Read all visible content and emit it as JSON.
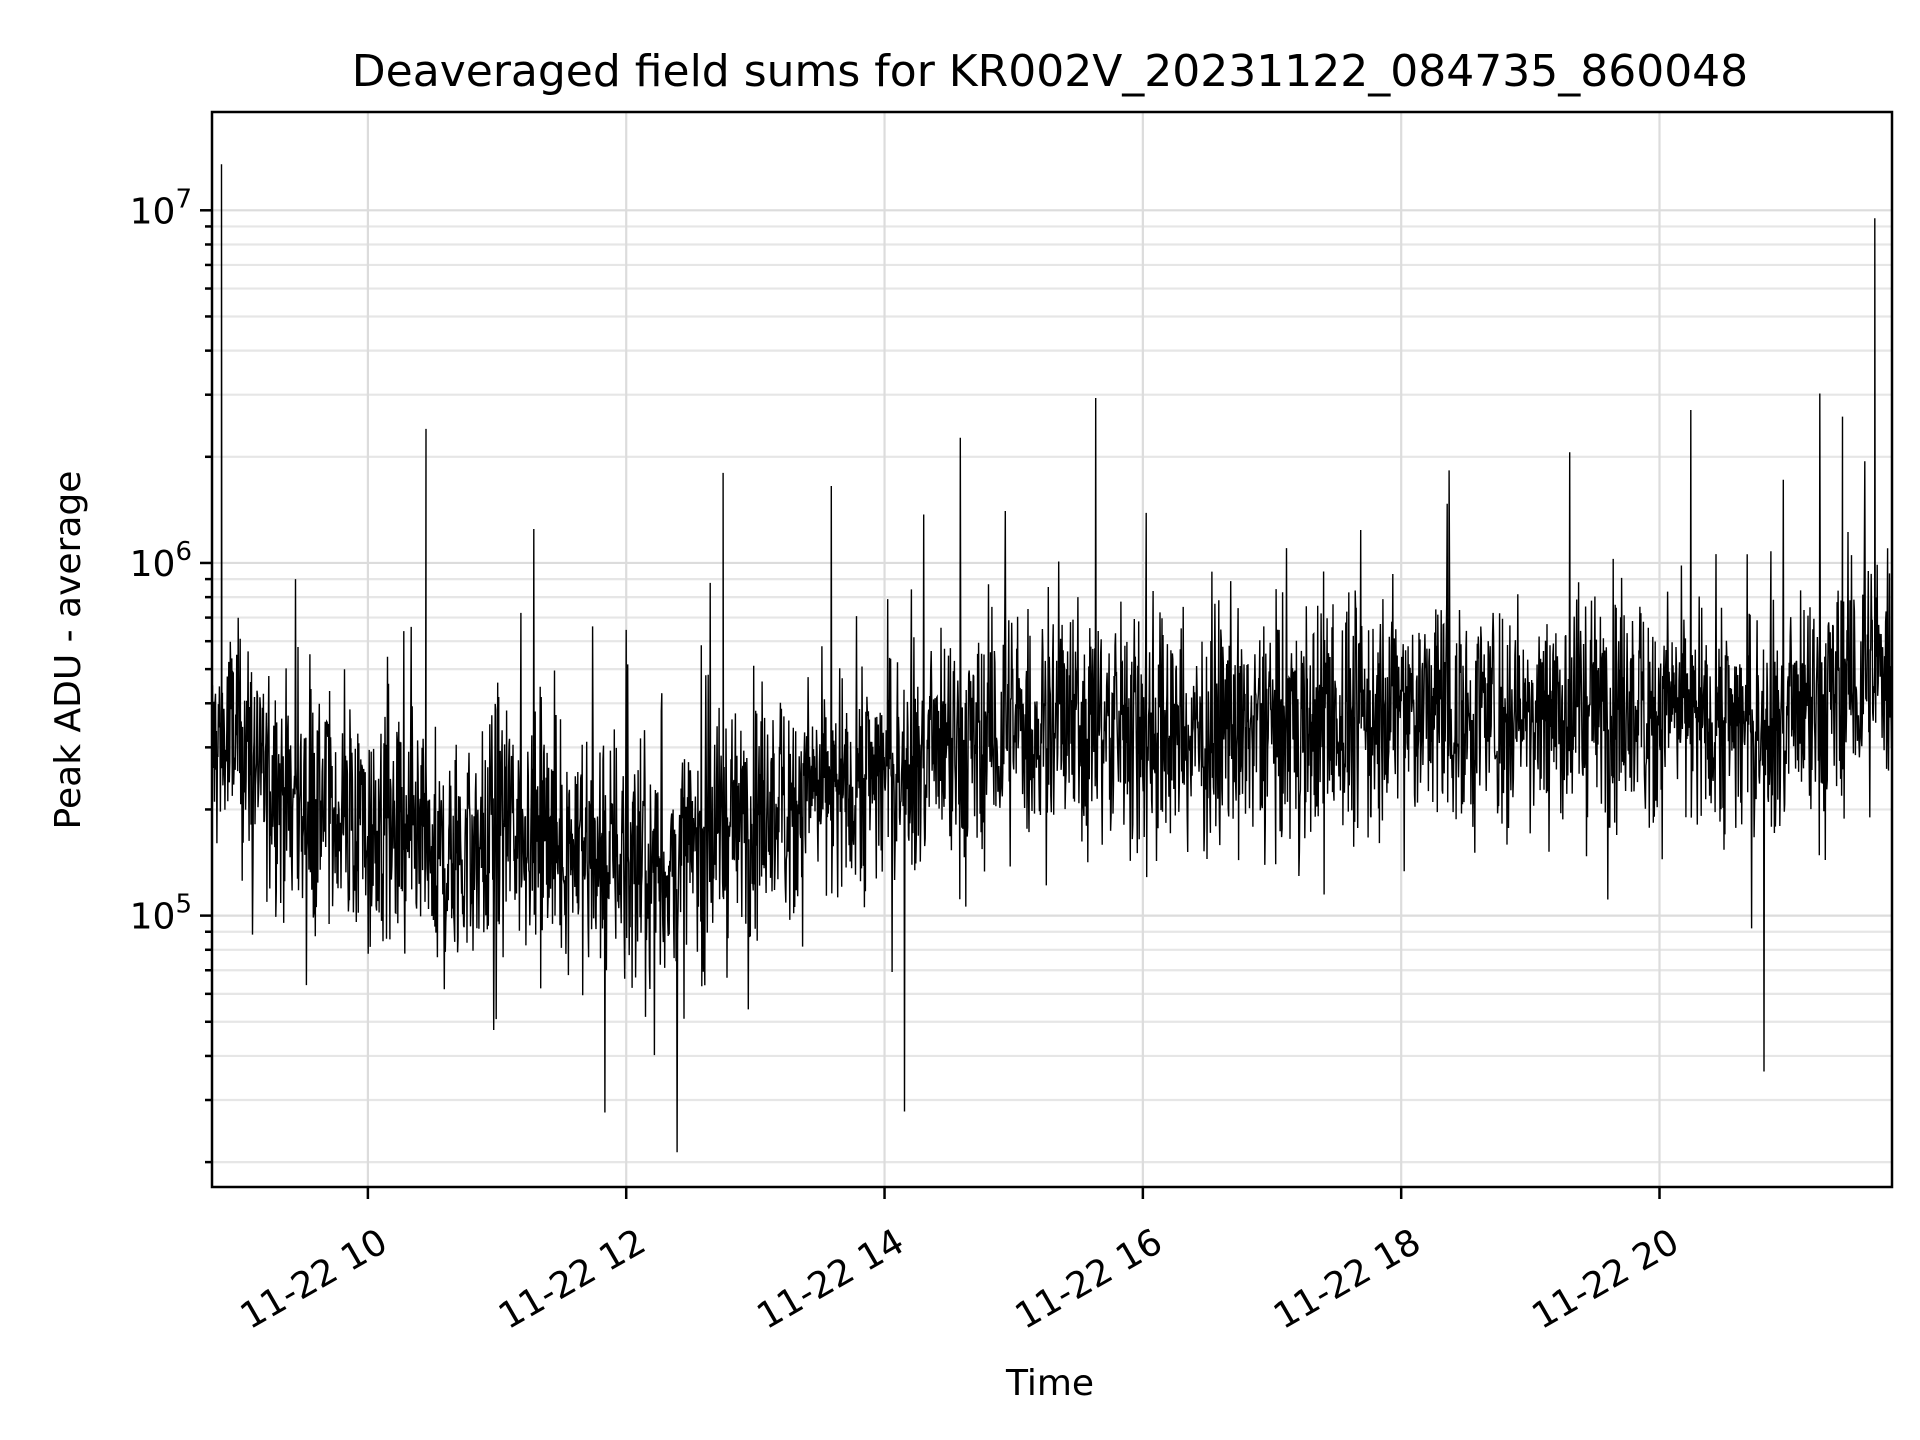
{
  "chart_data": {
    "type": "line",
    "title": "Deaveraged field sums for KR002V_20231122_084735_860048",
    "xlabel": "Time",
    "ylabel": "Peak ADU - average",
    "yscale": "log",
    "ylim": [
      17000,
      19000000
    ],
    "xlim": [
      "2023-11-22T08:47:35",
      "2023-11-22T21:48:00"
    ],
    "x_ticks": [
      "11-22 10",
      "11-22 12",
      "11-22 14",
      "11-22 16",
      "11-22 18",
      "11-22 20"
    ],
    "y_ticks": [
      {
        "base": "10",
        "exp": "5"
      },
      {
        "base": "10",
        "exp": "6"
      },
      {
        "base": "10",
        "exp": "7"
      }
    ],
    "grid": true,
    "line_color": "#000000",
    "series": [
      {
        "x": [
          "2023-11-22T08:48",
          "2023-11-22T08:52",
          "2023-11-22T09:00",
          "2023-11-22T09:10",
          "2023-11-22T09:20",
          "2023-11-22T09:30",
          "2023-11-22T09:40",
          "2023-11-22T09:50",
          "2023-11-22T10:00",
          "2023-11-22T10:10",
          "2023-11-22T10:20",
          "2023-11-22T10:27",
          "2023-11-22T10:35",
          "2023-11-22T10:45",
          "2023-11-22T10:55",
          "2023-11-22T11:05",
          "2023-11-22T11:20",
          "2023-11-22T11:35",
          "2023-11-22T11:50",
          "2023-11-22T12:05",
          "2023-11-22T12:20",
          "2023-11-22T12:35",
          "2023-11-22T12:45",
          "2023-11-22T13:00",
          "2023-11-22T13:15",
          "2023-11-22T13:30",
          "2023-11-22T13:45",
          "2023-11-22T14:00",
          "2023-11-22T14:15",
          "2023-11-22T14:30",
          "2023-11-22T14:45",
          "2023-11-22T15:00",
          "2023-11-22T15:10",
          "2023-11-22T15:20",
          "2023-11-22T15:35",
          "2023-11-22T15:50",
          "2023-11-22T16:05",
          "2023-11-22T16:20",
          "2023-11-22T16:40",
          "2023-11-22T17:00",
          "2023-11-22T17:20",
          "2023-11-22T17:40",
          "2023-11-22T18:00",
          "2023-11-22T18:20",
          "2023-11-22T18:40",
          "2023-11-22T19:00",
          "2023-11-22T19:20",
          "2023-11-22T19:40",
          "2023-11-22T20:00",
          "2023-11-22T20:20",
          "2023-11-22T20:40",
          "2023-11-22T21:00",
          "2023-11-22T21:15",
          "2023-11-22T21:25",
          "2023-11-22T21:35",
          "2023-11-22T21:40",
          "2023-11-22T21:47"
        ],
        "values": [
          300000,
          13500000,
          320000,
          260000,
          230000,
          200000,
          210000,
          180000,
          170000,
          160000,
          150000,
          2400000,
          140000,
          150000,
          160000,
          190000,
          170000,
          160000,
          150000,
          140000,
          130000,
          160000,
          1800000,
          200000,
          210000,
          220000,
          240000,
          260000,
          270000,
          280000,
          290000,
          340000,
          330000,
          350000,
          350000,
          340000,
          330000,
          320000,
          330000,
          340000,
          350000,
          360000,
          390000,
          380000,
          370000,
          380000,
          390000,
          400000,
          380000,
          370000,
          350000,
          340000,
          380000,
          2600000,
          450000,
          9500000,
          500000
        ]
      }
    ]
  }
}
